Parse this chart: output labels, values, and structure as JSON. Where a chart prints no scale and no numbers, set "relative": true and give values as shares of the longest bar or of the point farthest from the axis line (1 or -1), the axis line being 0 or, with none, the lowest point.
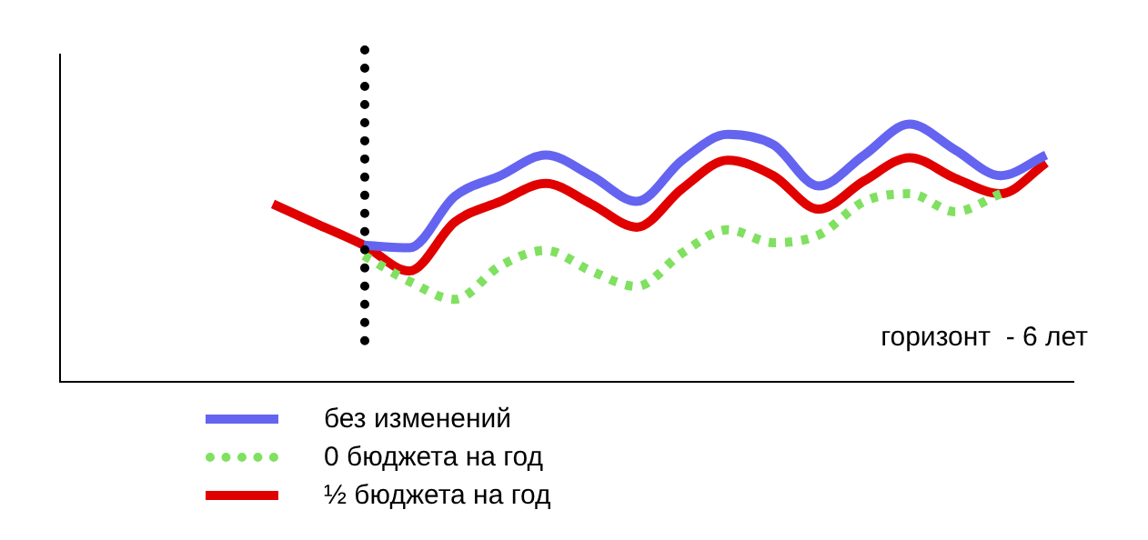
{
  "chart_data": {
    "type": "line",
    "relative": true,
    "categories": [
      null,
      null,
      null,
      null,
      null,
      null,
      null,
      null,
      null,
      null,
      null,
      null,
      null,
      null,
      null,
      null,
      null,
      null
    ],
    "series": [
      {
        "name": "без изменений",
        "color": "#6464f0",
        "values": [
          null,
          null,
          0.53,
          0.52,
          0.72,
          0.8,
          0.88,
          0.8,
          0.7,
          0.86,
          0.96,
          0.92,
          0.76,
          0.88,
          1,
          0.9,
          0.8,
          0.88
        ]
      },
      {
        "name": "0 бюджета на год",
        "color": "#80e060",
        "line_style": "dotted",
        "values": [
          null,
          null,
          0.49,
          0.39,
          0.32,
          0.45,
          0.51,
          0.43,
          0.37,
          0.5,
          0.59,
          0.54,
          0.57,
          0.7,
          0.73,
          0.66,
          0.73,
          null
        ]
      },
      {
        "name": "½ бюджета на год",
        "color": "#e00000",
        "values": [
          0.69,
          0.61,
          0.53,
          0.43,
          0.62,
          0.7,
          0.77,
          0.69,
          0.6,
          0.75,
          0.86,
          0.8,
          0.67,
          0.78,
          0.87,
          0.79,
          0.73,
          0.85
        ]
      }
    ],
    "annotations": [
      "горизонт  - 6 лет"
    ],
    "legend": "bottom"
  }
}
